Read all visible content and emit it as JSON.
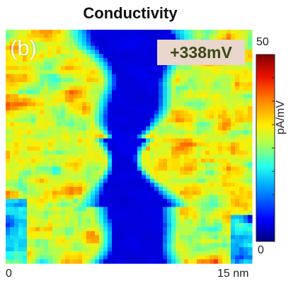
{
  "chart_data": {
    "type": "heatmap",
    "title": "Conductivity",
    "panel_label": "(b)",
    "annotation": "+338mV",
    "x_tick_labels": [
      "0",
      "15 nm"
    ],
    "x_range": [
      0,
      15
    ],
    "colorbar": {
      "min_label": "0",
      "max_label": "50",
      "range": [
        0,
        50
      ],
      "unit_label": "pA/mV",
      "colormap": "jet",
      "colors": [
        "#00007f",
        "#0000ff",
        "#00aaff",
        "#22ffee",
        "#aaff55",
        "#ffee00",
        "#ff8800",
        "#ee1100",
        "#7f0000"
      ]
    },
    "description_feature": "low-conductivity dark-blue vertical band in the center, high-conductivity red/orange regions on both sides"
  }
}
